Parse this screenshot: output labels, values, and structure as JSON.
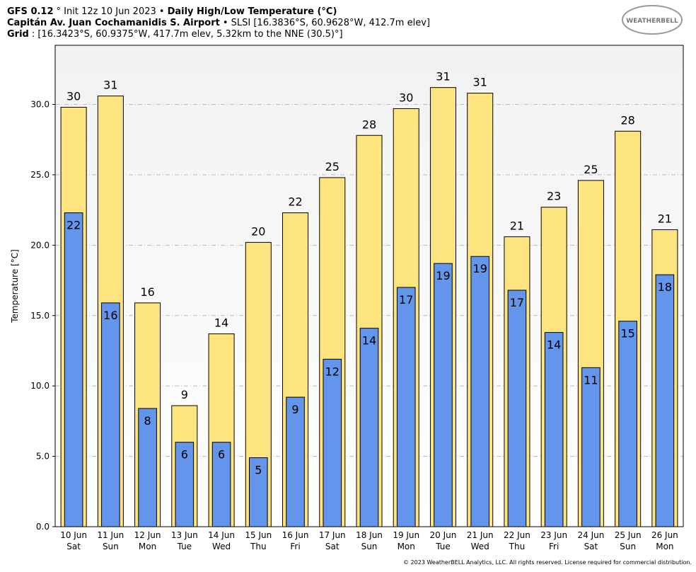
{
  "header": [
    [
      {
        "text": "GFS 0.12",
        "bold": true
      },
      {
        "text": "° Init 12z 10 Jun 2023 •",
        "bold": false
      },
      {
        "text": "Daily High/Low Temperature (°C)",
        "bold": true
      }
    ],
    [
      {
        "text": "Capitán Av. Juan Cochamanidis S. Airport",
        "bold": true
      },
      {
        "text": "• SLSI [16.3836°S, 60.9628°W, 412.7m elev]",
        "bold": false
      }
    ],
    [
      {
        "text": "Grid",
        "bold": true
      },
      {
        "text": ": [16.3423°S, 60.9375°W, 417.7m elev, 5.32km to the NNE (30.5)°]",
        "bold": false
      }
    ]
  ],
  "logo": "WEATHERBELL",
  "copyright": "© 2023 WeatherBELL Analytics, LLC. All rights reserved. License required for commercial distribution.",
  "chart_data": {
    "type": "bar",
    "ylabel": "Temperature [°C]",
    "categories": [
      [
        "10 Jun",
        "Sat"
      ],
      [
        "11 Jun",
        "Sun"
      ],
      [
        "12 Jun",
        "Mon"
      ],
      [
        "13 Jun",
        "Tue"
      ],
      [
        "14 Jun",
        "Wed"
      ],
      [
        "15 Jun",
        "Thu"
      ],
      [
        "16 Jun",
        "Fri"
      ],
      [
        "17 Jun",
        "Sat"
      ],
      [
        "18 Jun",
        "Sun"
      ],
      [
        "19 Jun",
        "Mon"
      ],
      [
        "20 Jun",
        "Tue"
      ],
      [
        "21 Jun",
        "Wed"
      ],
      [
        "22 Jun",
        "Thu"
      ],
      [
        "23 Jun",
        "Fri"
      ],
      [
        "24 Jun",
        "Sat"
      ],
      [
        "25 Jun",
        "Sun"
      ],
      [
        "26 Jun",
        "Mon"
      ]
    ],
    "series": [
      {
        "name": "High",
        "color": "#fde47f",
        "values": [
          29.8,
          30.6,
          15.9,
          8.6,
          13.7,
          20.2,
          22.3,
          24.8,
          27.8,
          29.7,
          31.2,
          30.8,
          20.6,
          22.7,
          24.6,
          28.1,
          21.1
        ],
        "value_labels": [
          "30",
          "31",
          "16",
          "9",
          "14",
          "20",
          "22",
          "25",
          "28",
          "30",
          "31",
          "31",
          "21",
          "23",
          "25",
          "28",
          "21"
        ]
      },
      {
        "name": "Low",
        "color": "#6495ed",
        "values": [
          22.3,
          15.9,
          8.4,
          6.0,
          6.0,
          4.9,
          9.2,
          11.9,
          14.1,
          17.0,
          18.7,
          19.2,
          16.8,
          13.8,
          11.3,
          14.6,
          17.9
        ],
        "value_labels": [
          "22",
          "16",
          "8",
          "6",
          "6",
          "5",
          "9",
          "12",
          "14",
          "17",
          "19",
          "19",
          "17",
          "14",
          "11",
          "15",
          "18"
        ]
      }
    ],
    "ylim": [
      0,
      34.2
    ],
    "yticks": [
      {
        "value": 0,
        "label": "0.0"
      },
      {
        "value": 5,
        "label": "5.0"
      },
      {
        "value": 10,
        "label": "10.0"
      },
      {
        "value": 15,
        "label": "15.0"
      },
      {
        "value": 20,
        "label": "20.0"
      },
      {
        "value": 25,
        "label": "25.0"
      },
      {
        "value": 30,
        "label": "30.0"
      }
    ],
    "grid": true
  }
}
